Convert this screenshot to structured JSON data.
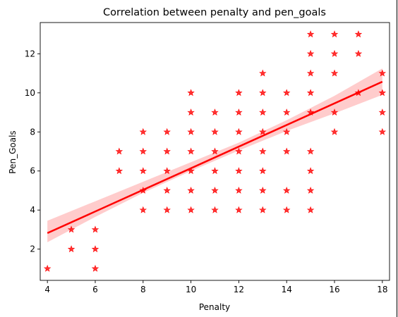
{
  "chart_data": {
    "type": "scatter",
    "title": "Correlation between penalty and pen_goals",
    "xlabel": "Penalty",
    "ylabel": "Pen_Goals",
    "xlim": [
      3.7,
      18.3
    ],
    "ylim": [
      0.4,
      13.6
    ],
    "xticks": [
      "4",
      "6",
      "8",
      "10",
      "12",
      "14",
      "16",
      "18"
    ],
    "yticks": [
      "2",
      "4",
      "6",
      "8",
      "10",
      "12"
    ],
    "marker": "star",
    "grid": false,
    "legend": "none",
    "colors": {
      "points": "#ff0000",
      "regression_line": "#ff0000",
      "confidence_band": "#ffcccc"
    },
    "points": [
      {
        "x": 4,
        "y": 1
      },
      {
        "x": 5,
        "y": 2
      },
      {
        "x": 5,
        "y": 3
      },
      {
        "x": 6,
        "y": 1
      },
      {
        "x": 6,
        "y": 2
      },
      {
        "x": 6,
        "y": 3
      },
      {
        "x": 7,
        "y": 6
      },
      {
        "x": 7,
        "y": 7
      },
      {
        "x": 8,
        "y": 4
      },
      {
        "x": 8,
        "y": 5
      },
      {
        "x": 8,
        "y": 6
      },
      {
        "x": 8,
        "y": 7
      },
      {
        "x": 8,
        "y": 8
      },
      {
        "x": 9,
        "y": 4
      },
      {
        "x": 9,
        "y": 5
      },
      {
        "x": 9,
        "y": 6
      },
      {
        "x": 9,
        "y": 7
      },
      {
        "x": 9,
        "y": 8
      },
      {
        "x": 10,
        "y": 4
      },
      {
        "x": 10,
        "y": 5
      },
      {
        "x": 10,
        "y": 6
      },
      {
        "x": 10,
        "y": 7
      },
      {
        "x": 10,
        "y": 8
      },
      {
        "x": 10,
        "y": 9
      },
      {
        "x": 10,
        "y": 10
      },
      {
        "x": 11,
        "y": 4
      },
      {
        "x": 11,
        "y": 5
      },
      {
        "x": 11,
        "y": 6
      },
      {
        "x": 11,
        "y": 7
      },
      {
        "x": 11,
        "y": 8
      },
      {
        "x": 11,
        "y": 9
      },
      {
        "x": 12,
        "y": 4
      },
      {
        "x": 12,
        "y": 5
      },
      {
        "x": 12,
        "y": 6
      },
      {
        "x": 12,
        "y": 7
      },
      {
        "x": 12,
        "y": 8
      },
      {
        "x": 12,
        "y": 9
      },
      {
        "x": 12,
        "y": 10
      },
      {
        "x": 13,
        "y": 4
      },
      {
        "x": 13,
        "y": 5
      },
      {
        "x": 13,
        "y": 6
      },
      {
        "x": 13,
        "y": 7
      },
      {
        "x": 13,
        "y": 8
      },
      {
        "x": 13,
        "y": 9
      },
      {
        "x": 13,
        "y": 10
      },
      {
        "x": 13,
        "y": 11
      },
      {
        "x": 14,
        "y": 4
      },
      {
        "x": 14,
        "y": 5
      },
      {
        "x": 14,
        "y": 7
      },
      {
        "x": 14,
        "y": 8
      },
      {
        "x": 14,
        "y": 9
      },
      {
        "x": 14,
        "y": 10
      },
      {
        "x": 15,
        "y": 4
      },
      {
        "x": 15,
        "y": 5
      },
      {
        "x": 15,
        "y": 6
      },
      {
        "x": 15,
        "y": 7
      },
      {
        "x": 15,
        "y": 9
      },
      {
        "x": 15,
        "y": 10
      },
      {
        "x": 15,
        "y": 11
      },
      {
        "x": 15,
        "y": 12
      },
      {
        "x": 15,
        "y": 13
      },
      {
        "x": 16,
        "y": 8
      },
      {
        "x": 16,
        "y": 9
      },
      {
        "x": 16,
        "y": 11
      },
      {
        "x": 16,
        "y": 12
      },
      {
        "x": 16,
        "y": 13
      },
      {
        "x": 17,
        "y": 10
      },
      {
        "x": 17,
        "y": 12
      },
      {
        "x": 17,
        "y": 13
      },
      {
        "x": 18,
        "y": 8
      },
      {
        "x": 18,
        "y": 9
      },
      {
        "x": 18,
        "y": 10
      },
      {
        "x": 18,
        "y": 11
      }
    ],
    "regression": {
      "x": [
        4,
        18
      ],
      "y": [
        2.82,
        10.57
      ]
    },
    "confidence_band": {
      "x": [
        4,
        6,
        8,
        10,
        12,
        14,
        16,
        18
      ],
      "lower": [
        2.35,
        3.65,
        4.88,
        6.0,
        7.05,
        8.05,
        8.95,
        9.9
      ],
      "upper": [
        3.45,
        4.45,
        5.45,
        6.45,
        7.45,
        8.6,
        9.85,
        11.25
      ]
    }
  }
}
